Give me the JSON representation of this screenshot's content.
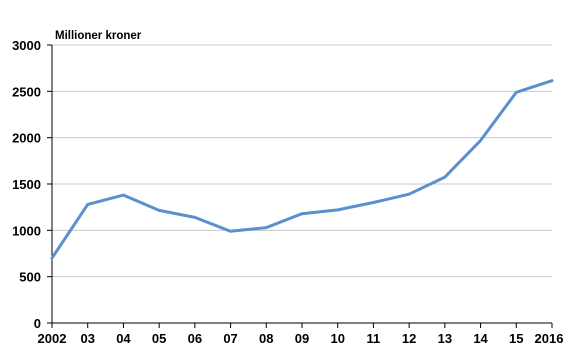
{
  "chart_data": {
    "type": "line",
    "title": "",
    "xlabel": "",
    "ylabel": "Millioner kroner",
    "categories": [
      "2002",
      "03",
      "04",
      "05",
      "06",
      "07",
      "08",
      "09",
      "10",
      "11",
      "12",
      "13",
      "14",
      "15",
      "2016"
    ],
    "series": [
      {
        "values": [
          700,
          1280,
          1380,
          1215,
          1140,
          990,
          1030,
          1180,
          1220,
          1300,
          1390,
          1575,
          1970,
          2490,
          2615
        ],
        "color": "#5b8fd0"
      }
    ],
    "ylim": [
      0,
      3000
    ],
    "yticks": [
      0,
      500,
      1000,
      1500,
      2000,
      2500,
      3000
    ],
    "grid": true,
    "legend": "none"
  }
}
